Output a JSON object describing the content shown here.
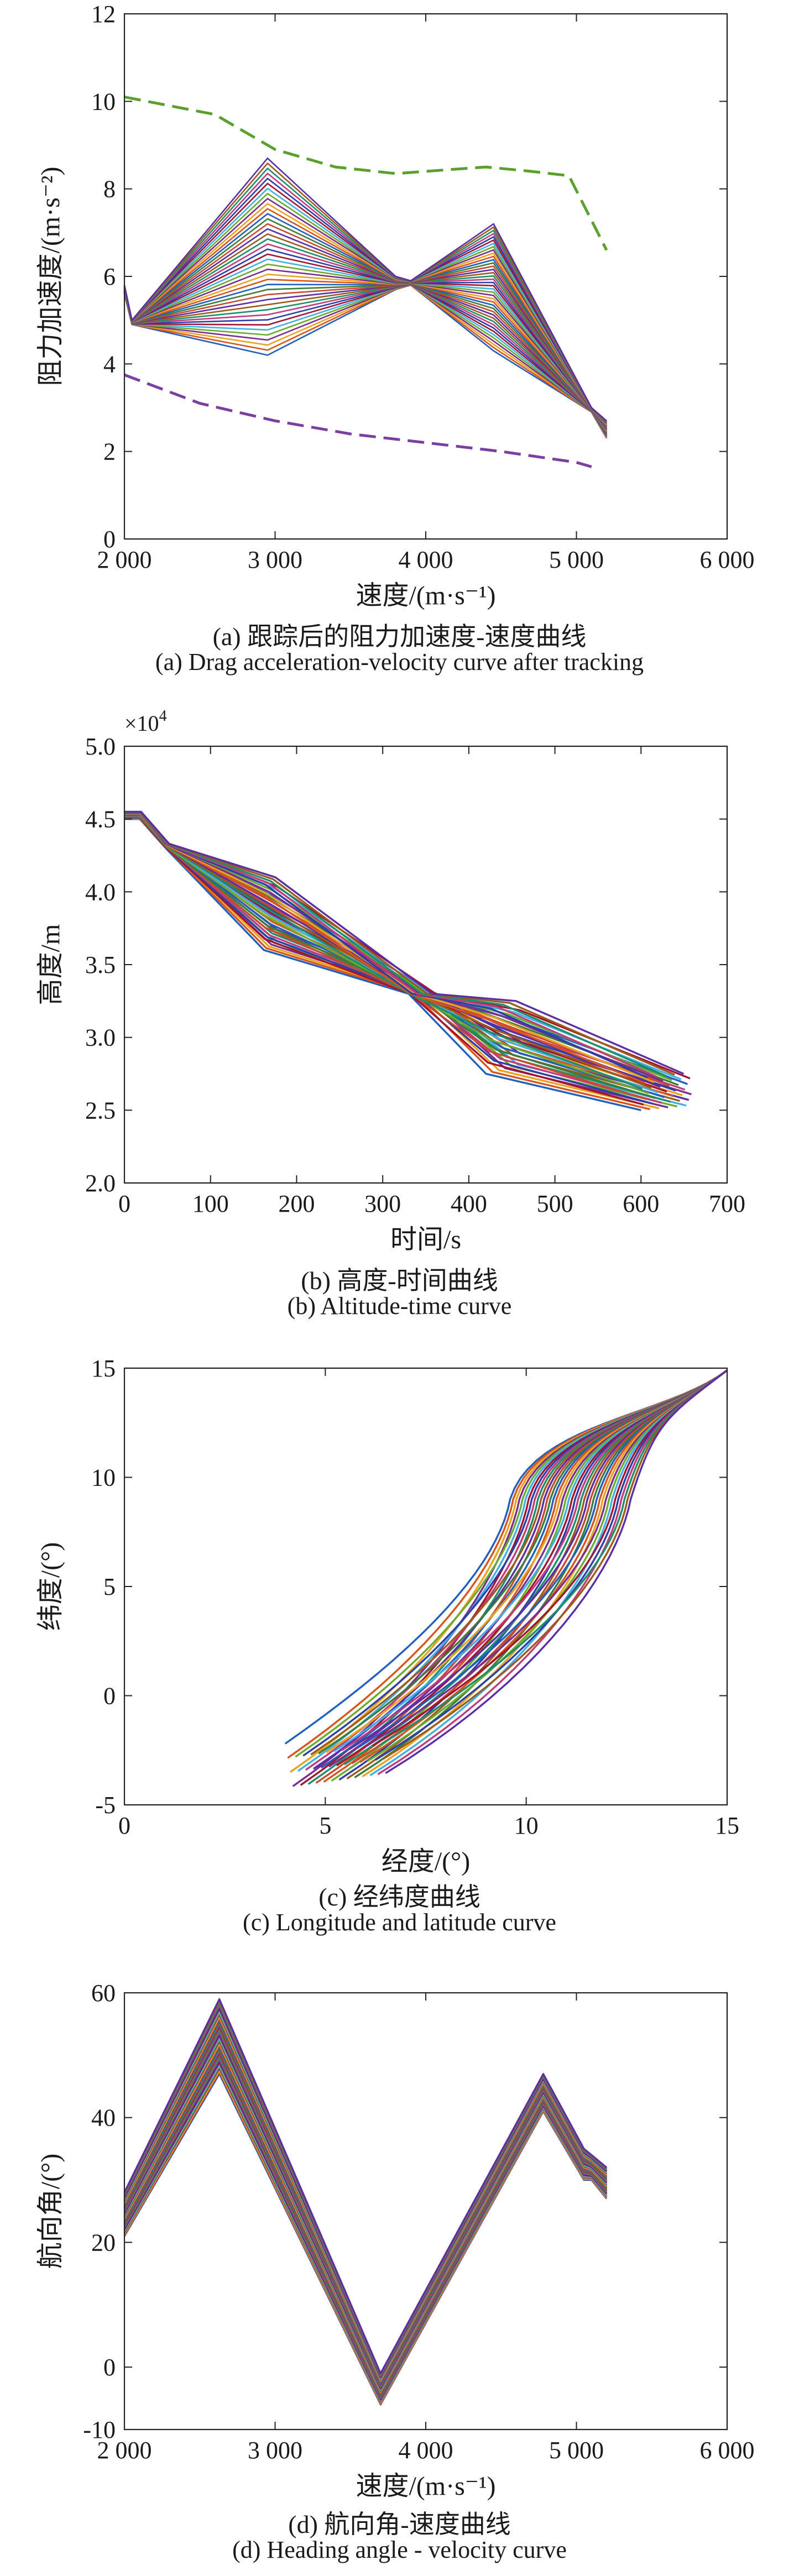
{
  "chart_data": [
    {
      "type": "line",
      "title": "",
      "xlabel": "速度/(m·s⁻¹)",
      "ylabel": "阻力加速度/(m·s⁻²)",
      "xlim": [
        2000,
        6000
      ],
      "ylim": [
        0,
        12
      ],
      "x_ticks": [
        2000,
        3000,
        4000,
        5000,
        6000
      ],
      "x_tick_labels": [
        "2 000",
        "3 000",
        "4 000",
        "5 000",
        "6 000"
      ],
      "y_ticks": [
        0,
        2,
        4,
        6,
        8,
        10,
        12
      ],
      "y_tick_labels": [
        "0",
        "2",
        "4",
        "6",
        "8",
        "10",
        "12"
      ],
      "caption_zh": "(a) 跟踪后的阻力加速度-速度曲线",
      "caption_en": "(a) Drag acceleration-velocity curve after tracking",
      "bounds": [
        {
          "name": "upper boundary",
          "color": "#5aa02c",
          "dash": true,
          "x": [
            2000,
            2600,
            3000,
            3400,
            3800,
            4200,
            4400,
            4700,
            4950,
            5200
          ],
          "y": [
            10.1,
            9.7,
            8.9,
            8.5,
            8.35,
            8.45,
            8.5,
            8.4,
            8.3,
            6.6
          ]
        },
        {
          "name": "lower boundary",
          "color": "#7a3fa0",
          "dash": true,
          "x": [
            2000,
            2500,
            3000,
            3500,
            4000,
            4500,
            5000,
            5100
          ],
          "y": [
            3.75,
            3.1,
            2.7,
            2.4,
            2.2,
            2.0,
            1.75,
            1.65
          ]
        }
      ],
      "series_family": {
        "count": 40,
        "x": [
          2000,
          2050,
          2950,
          3800,
          3900,
          4450,
          5100,
          5200
        ],
        "y_min": [
          5.6,
          4.9,
          4.2,
          5.7,
          5.8,
          4.3,
          2.9,
          2.3
        ],
        "y_max": [
          5.8,
          5.0,
          8.7,
          6.0,
          5.9,
          7.2,
          3.0,
          2.7
        ]
      }
    },
    {
      "type": "line",
      "title": "",
      "xlabel": "时间/s",
      "ylabel": "高度/m",
      "y_multiplier_label": "×10",
      "y_multiplier_exp": "4",
      "xlim": [
        0,
        700
      ],
      "ylim": [
        2.0,
        5.0
      ],
      "x_ticks": [
        0,
        100,
        200,
        300,
        400,
        500,
        600,
        700
      ],
      "x_tick_labels": [
        "0",
        "100",
        "200",
        "300",
        "400",
        "500",
        "600",
        "700"
      ],
      "y_ticks": [
        2.0,
        2.5,
        3.0,
        3.5,
        4.0,
        4.5,
        5.0
      ],
      "y_tick_labels": [
        "2.0",
        "2.5",
        "3.0",
        "3.5",
        "4.0",
        "4.5",
        "5.0"
      ],
      "caption_zh": "(b) 高度-时间曲线",
      "caption_en": "(b) Altitude-time curve",
      "series_family": {
        "count": 40,
        "x_start": 0,
        "x_end_range": [
          600,
          660
        ],
        "knots_frac": [
          0,
          0.03,
          0.08,
          0.27,
          0.55,
          0.7,
          1.0
        ],
        "y_min": [
          4.5,
          4.5,
          4.3,
          3.6,
          3.3,
          2.75,
          2.5
        ],
        "y_max": [
          4.55,
          4.55,
          4.33,
          4.1,
          3.3,
          3.25,
          2.75
        ]
      }
    },
    {
      "type": "line",
      "title": "",
      "xlabel": "经度/(°)",
      "ylabel": "纬度/(°)",
      "xlim": [
        0,
        15
      ],
      "ylim": [
        -5,
        15
      ],
      "x_ticks": [
        0,
        5,
        10,
        15
      ],
      "x_tick_labels": [
        "0",
        "5",
        "10",
        "15"
      ],
      "y_ticks": [
        -5,
        0,
        5,
        10,
        15
      ],
      "y_tick_labels": [
        "-5",
        "0",
        "5",
        "10",
        "15"
      ],
      "caption_zh": "(c) 经纬度曲线",
      "caption_en": "(c) Longitude and latitude curve",
      "series_family": {
        "count": 40,
        "start_x_range": [
          4.0,
          6.5
        ],
        "start_y_range": [
          -2.2,
          -4.2
        ],
        "end": [
          15,
          14.9
        ],
        "bend_x_range": [
          9.0,
          12.0
        ]
      }
    },
    {
      "type": "line",
      "title": "",
      "xlabel": "速度/(m·s⁻¹)",
      "ylabel": "航向角/(°)",
      "xlim": [
        2000,
        6000
      ],
      "ylim": [
        -10,
        60
      ],
      "x_ticks": [
        2000,
        3000,
        4000,
        5000,
        6000
      ],
      "x_tick_labels": [
        "2 000",
        "3 000",
        "4 000",
        "5 000",
        "6 000"
      ],
      "y_ticks": [
        -10,
        0,
        20,
        40,
        60
      ],
      "y_tick_labels": [
        "-10",
        "0",
        "20",
        "40",
        "60"
      ],
      "caption_zh": "(d) 航向角-速度曲线",
      "caption_en": "(d) Heading angle - velocity curve",
      "series_family": {
        "count": 40,
        "x": [
          2000,
          2630,
          3700,
          4780,
          5050,
          5100,
          5200
        ],
        "y_min": [
          21,
          47,
          -6,
          41,
          30,
          30,
          27
        ],
        "y_max": [
          28,
          59,
          -1,
          47,
          35,
          34,
          32
        ]
      }
    }
  ]
}
